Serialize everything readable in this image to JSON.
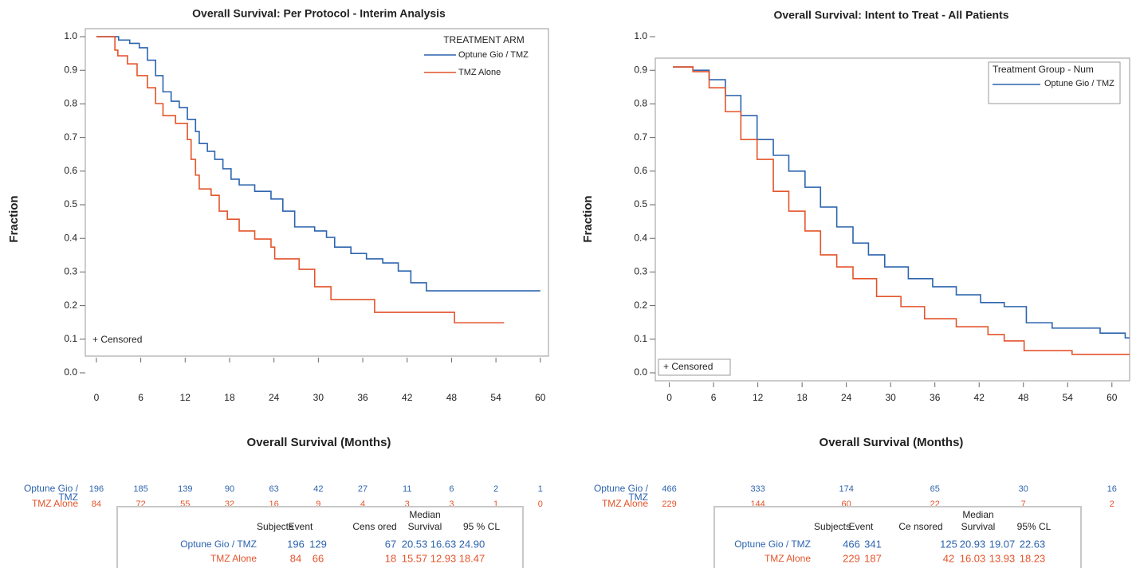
{
  "chart_data": [
    {
      "type": "step",
      "title": "Overall Survival: Per Protocol - Interim Analysis",
      "x_label": "Overall Survival (Months)",
      "y_label": "Fraction",
      "xlim": [
        -1.5,
        61.1
      ],
      "xticks": [
        0,
        6,
        12,
        18,
        24,
        30,
        36,
        42,
        48,
        54,
        60
      ],
      "ylim": [
        0,
        1.02
      ],
      "yticks": [
        {
          "value": 0,
          "label": "0.0"
        },
        0.1,
        0.2,
        0.3,
        0.4,
        0.5,
        0.6,
        0.7,
        0.8,
        0.9,
        {
          "value": 1,
          "label": "1.0"
        }
      ],
      "legend_title": "TREATMENT ARM",
      "legend_box": false,
      "censored_note": "+ Censored",
      "series": [
        {
          "name": "Optune Gio / TMZ",
          "color": "#2c64ae",
          "x": [
            0,
            3,
            4.5,
            5.8,
            6.9,
            8,
            9,
            10.1,
            11.2,
            12.3,
            13.4,
            13.9,
            15,
            16,
            17.1,
            18.2,
            19.3,
            21.4,
            23.6,
            25.2,
            26.8,
            29.5,
            31.1,
            32.2,
            34.4,
            36.5,
            38.7,
            40.8,
            42.5,
            44.6,
            60
          ],
          "values": [
            1.0,
            0.99,
            0.98,
            0.967,
            0.93,
            0.884,
            0.836,
            0.808,
            0.789,
            0.754,
            0.718,
            0.682,
            0.659,
            0.635,
            0.607,
            0.576,
            0.559,
            0.54,
            0.517,
            0.481,
            0.434,
            0.422,
            0.403,
            0.374,
            0.355,
            0.339,
            0.327,
            0.303,
            0.268,
            0.244,
            0.244
          ]
        },
        {
          "name": "TMZ Alone",
          "color": "#e4542b",
          "x": [
            0,
            2.5,
            2.9,
            4.2,
            5.5,
            6.9,
            8,
            9,
            10.7,
            12.3,
            12.8,
            13.4,
            13.9,
            15.5,
            16.6,
            17.7,
            19.3,
            21.4,
            23.6,
            24.1,
            27.4,
            29.5,
            31.7,
            37.6,
            48.4,
            55.1
          ],
          "values": [
            1.0,
            0.96,
            0.943,
            0.919,
            0.884,
            0.848,
            0.801,
            0.765,
            0.742,
            0.694,
            0.635,
            0.588,
            0.547,
            0.528,
            0.481,
            0.457,
            0.422,
            0.398,
            0.374,
            0.339,
            0.308,
            0.256,
            0.218,
            0.18,
            0.149,
            0.149
          ]
        }
      ],
      "risk_table": {
        "times": [
          0,
          6,
          12,
          18,
          24,
          30,
          36,
          42,
          48,
          54,
          60
        ],
        "rows": [
          {
            "name": "Optune Gio / TMZ",
            "color": "#2c64ae",
            "values": [
              196,
              185,
              139,
              90,
              63,
              42,
              27,
              11,
              6,
              2,
              1
            ]
          },
          {
            "name": "TMZ Alone",
            "color": "#e4542b",
            "values": [
              84,
              72,
              55,
              32,
              16,
              9,
              4,
              3,
              3,
              1,
              0
            ]
          }
        ]
      },
      "summary": {
        "median_header": "Median",
        "headers": [
          "Subjects",
          "Event",
          "Cens ored",
          "Survival",
          "95  % CL"
        ],
        "rows": [
          {
            "color": "#2c64ae",
            "cells": [
              "Optune Gio / TMZ",
              "196",
              "129",
              "67",
              "20.53",
              "16.63",
              "24.90"
            ]
          },
          {
            "color": "#e4542b",
            "cells": [
              "TMZ Alone",
              "84",
              "66",
              "18",
              "15.57",
              "12.93",
              "18.47"
            ]
          }
        ]
      }
    },
    {
      "type": "step",
      "title": "Overall Survival: Intent to Treat - All Patients",
      "x_label": "Overall Survival (Months)",
      "y_label": "Fraction",
      "xlim": [
        -1.9,
        62.4
      ],
      "xticks": [
        0,
        6,
        12,
        18,
        24,
        30,
        36,
        42,
        48,
        54,
        60
      ],
      "ylim": [
        0,
        1.02
      ],
      "yticks": [
        {
          "value": 0,
          "label": "0.0"
        },
        0.1,
        0.2,
        0.3,
        0.4,
        0.5,
        0.6,
        0.7,
        0.8,
        0.9,
        {
          "value": 1,
          "label": "1.0"
        }
      ],
      "legend_title": "Treatment  Group - Num",
      "legend_box": true,
      "censored_note": "+ Censored",
      "series": [
        {
          "name": "Optune Gio / TMZ",
          "color": "#2c64ae",
          "x": [
            0.5,
            3.2,
            5.4,
            7.6,
            9.7,
            11.9,
            14.1,
            16.2,
            18.4,
            20.5,
            22.7,
            24.9,
            27,
            29.2,
            32.4,
            35.7,
            38.9,
            42.2,
            45.4,
            48.4,
            51.9,
            58.4,
            61.8,
            62.4
          ],
          "values": [
            0.91,
            0.9,
            0.872,
            0.825,
            0.765,
            0.694,
            0.647,
            0.6,
            0.552,
            0.493,
            0.434,
            0.386,
            0.351,
            0.315,
            0.28,
            0.256,
            0.232,
            0.209,
            0.197,
            0.149,
            0.133,
            0.118,
            0.104,
            0.104
          ]
        },
        {
          "color": "#e4542b",
          "x": [
            0.5,
            3.2,
            5.4,
            7.6,
            9.7,
            11.9,
            14.1,
            16.2,
            18.4,
            20.5,
            22.7,
            24.9,
            28.1,
            31.4,
            34.6,
            38.9,
            43.2,
            45.4,
            48.1,
            54.6,
            62.4
          ],
          "values": [
            0.91,
            0.896,
            0.848,
            0.777,
            0.694,
            0.635,
            0.54,
            0.481,
            0.422,
            0.351,
            0.315,
            0.28,
            0.227,
            0.197,
            0.161,
            0.137,
            0.114,
            0.095,
            0.066,
            0.055,
            0.055
          ]
        }
      ],
      "risk_table": {
        "times": [
          0,
          12,
          24,
          36,
          48,
          60
        ],
        "rows": [
          {
            "name": "Optune Gio / TMZ",
            "color": "#2c64ae",
            "values": [
              466,
              333,
              174,
              65,
              30,
              16
            ]
          },
          {
            "name": "TMZ Alone",
            "color": "#e4542b",
            "values": [
              229,
              144,
              60,
              22,
              7,
              2
            ]
          }
        ]
      },
      "summary": {
        "median_header": "Median",
        "headers": [
          "Subjects",
          "Event",
          "Ce  nsored",
          "Survival",
          "95% CL"
        ],
        "rows": [
          {
            "color": "#2c64ae",
            "cells": [
              "Optune Gio / TMZ",
              "466",
              "341",
              "125",
              "20.93",
              "19.07",
              "22.63"
            ]
          },
          {
            "color": "#e4542b",
            "cells": [
              "TMZ Alone",
              "229",
              "187",
              "42",
              "16.03",
              "13.93",
              "18.23"
            ]
          }
        ]
      }
    }
  ]
}
